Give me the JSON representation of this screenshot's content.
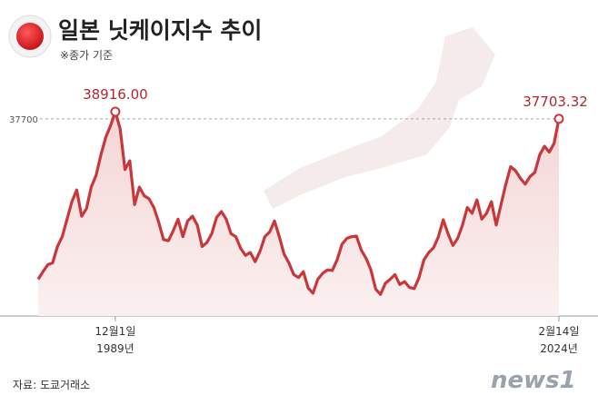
{
  "chart_data": {
    "type": "line",
    "title": "일본 닛케이지수 추이",
    "subtitle": "※종가 기준",
    "source": "자료: 도쿄거래소",
    "logo": "news1",
    "color": "#c8383a",
    "categories": [
      null,
      null,
      null,
      null,
      null,
      null,
      null,
      null,
      null,
      null,
      null,
      null,
      null,
      null,
      null,
      null,
      "12월1일\n1989년",
      null,
      null,
      null,
      null,
      null,
      null,
      null,
      null,
      null,
      null,
      null,
      null,
      null,
      null,
      null,
      null,
      null,
      null,
      null,
      null,
      null,
      null,
      null,
      null,
      null,
      null,
      null,
      null,
      null,
      null,
      null,
      null,
      null,
      null,
      null,
      null,
      null,
      null,
      null,
      null,
      null,
      null,
      null,
      null,
      null,
      null,
      null,
      null,
      null,
      null,
      null,
      null,
      null,
      null,
      null,
      null,
      null,
      null,
      null,
      null,
      null,
      null,
      null,
      null,
      null,
      null,
      null,
      null,
      null,
      null,
      null,
      null,
      null,
      null,
      null,
      null,
      null,
      null,
      null,
      null,
      null,
      null,
      null,
      null,
      null,
      null,
      null,
      null,
      null,
      null,
      null,
      "2월14일\n2024년"
    ],
    "values": [
      10200,
      11500,
      12700,
      13000,
      15800,
      17500,
      20500,
      23500,
      25500,
      21000,
      22300,
      26000,
      28000,
      31500,
      34500,
      36500,
      38916,
      36000,
      29000,
      30500,
      23000,
      26000,
      24500,
      24000,
      22500,
      20000,
      17000,
      16800,
      18500,
      20500,
      17500,
      20200,
      21000,
      19500,
      15800,
      16500,
      18000,
      20800,
      21800,
      20500,
      18000,
      17500,
      15500,
      14300,
      14800,
      13200,
      15000,
      17500,
      18300,
      20200,
      17500,
      14500,
      13000,
      11000,
      10500,
      11500,
      8700,
      7800,
      10200,
      11200,
      11800,
      11700,
      13500,
      16200,
      17200,
      17500,
      17600,
      15200,
      13800,
      11800,
      8500,
      7600,
      9500,
      10200,
      11000,
      9300,
      9800,
      8800,
      8600,
      10500,
      13500,
      14800,
      15600,
      17500,
      20400,
      18000,
      16000,
      17200,
      19500,
      22500,
      21500,
      23800,
      20500,
      21500,
      23500,
      19500,
      23000,
      26500,
      29500,
      28800,
      27500,
      26500,
      27800,
      28500,
      31500,
      33000,
      32000,
      33500,
      37703.32
    ],
    "value_labels": [
      null,
      null,
      null,
      null,
      null,
      null,
      null,
      null,
      null,
      null,
      null,
      null,
      null,
      null,
      null,
      null,
      "38916.00",
      null,
      null,
      null,
      null,
      null,
      null,
      null,
      null,
      null,
      null,
      null,
      null,
      null,
      null,
      null,
      null,
      null,
      null,
      null,
      null,
      null,
      null,
      null,
      null,
      null,
      null,
      null,
      null,
      null,
      null,
      null,
      null,
      null,
      null,
      null,
      null,
      null,
      null,
      null,
      null,
      null,
      null,
      null,
      null,
      null,
      null,
      null,
      null,
      null,
      null,
      null,
      null,
      null,
      null,
      null,
      null,
      null,
      null,
      null,
      null,
      null,
      null,
      null,
      null,
      null,
      null,
      null,
      null,
      null,
      null,
      null,
      null,
      null,
      null,
      null,
      null,
      null,
      null,
      null,
      null,
      null,
      null,
      null,
      null,
      null,
      null,
      null,
      null,
      null,
      null,
      null,
      "37703.32"
    ],
    "ylim": [
      3900,
      42500
    ],
    "yticks": [
      37700
    ],
    "grid": true
  }
}
